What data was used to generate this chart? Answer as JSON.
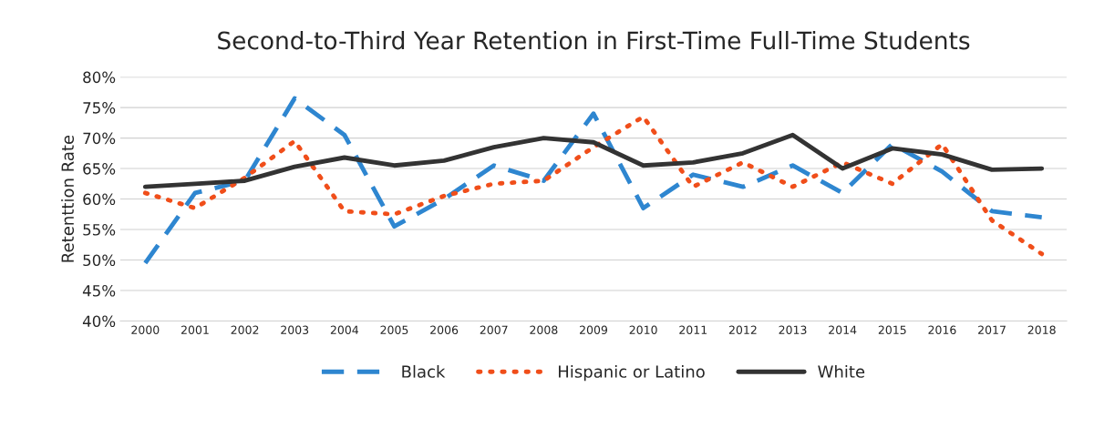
{
  "chart_data": {
    "type": "line",
    "title": "Second-to-Third Year Retention in First-Time Full-Time Students",
    "ylabel": "Retenttion Rate",
    "categories": [
      "2000",
      "2001",
      "2002",
      "2003",
      "2004",
      "2005",
      "2006",
      "2007",
      "2008",
      "2009",
      "2010",
      "2011",
      "2012",
      "2013",
      "2014",
      "2015",
      "2016",
      "2017",
      "2018"
    ],
    "series": [
      {
        "name": "Black",
        "color": "#2e86d0",
        "line_style": "dashed",
        "values": [
          49.5,
          61,
          63,
          76.5,
          70.5,
          55.5,
          60,
          65.5,
          63,
          74,
          58.5,
          64,
          62,
          65.5,
          61,
          69,
          64.5,
          58,
          57
        ]
      },
      {
        "name": "Hispanic or Latino",
        "color": "#f04e1a",
        "line_style": "dotted",
        "values": [
          61,
          58.5,
          63.5,
          69.5,
          58,
          57.5,
          60.5,
          62.5,
          63,
          68.5,
          73.5,
          62,
          66,
          62,
          66,
          62.5,
          69,
          56.5,
          51
        ]
      },
      {
        "name": "White",
        "color": "#333333",
        "line_style": "solid",
        "values": [
          62,
          62.5,
          63,
          65.3,
          66.8,
          65.5,
          66.3,
          68.5,
          70,
          69.3,
          65.5,
          66,
          67.5,
          70.5,
          65,
          68.3,
          67.3,
          64.8,
          65
        ]
      }
    ],
    "ylim": [
      40,
      80
    ],
    "yticks": [
      {
        "value": 40,
        "label": "40%"
      },
      {
        "value": 45,
        "label": "45%"
      },
      {
        "value": 50,
        "label": "50%"
      },
      {
        "value": 55,
        "label": "55%"
      },
      {
        "value": 60,
        "label": "60%"
      },
      {
        "value": 65,
        "label": "65%"
      },
      {
        "value": 70,
        "label": "70%"
      },
      {
        "value": 75,
        "label": "75%"
      },
      {
        "value": 80,
        "label": "80%"
      }
    ],
    "grid": "y",
    "legend": "bottom",
    "marker": "none"
  }
}
